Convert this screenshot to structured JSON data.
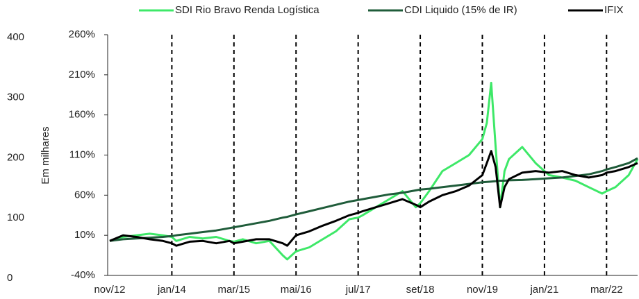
{
  "chart_data": {
    "type": "line",
    "y2_label": "Em milhares",
    "x": [
      "2012-11",
      "2013-02",
      "2013-05",
      "2013-08",
      "2013-11",
      "2014-01",
      "2014-02",
      "2014-05",
      "2014-08",
      "2014-11",
      "2015-02",
      "2015-03",
      "2015-05",
      "2015-08",
      "2015-11",
      "2016-02",
      "2016-03",
      "2016-05",
      "2016-08",
      "2016-11",
      "2017-02",
      "2017-05",
      "2017-07",
      "2017-08",
      "2017-11",
      "2018-02",
      "2018-05",
      "2018-08",
      "2018-09",
      "2018-11",
      "2019-02",
      "2019-05",
      "2019-08",
      "2019-11",
      "2019-12",
      "2020-01",
      "2020-02",
      "2020-03",
      "2020-04",
      "2020-05",
      "2020-08",
      "2020-11",
      "2021-02",
      "2021-05",
      "2021-08",
      "2021-11",
      "2022-02",
      "2022-03",
      "2022-05",
      "2022-08",
      "2022-10"
    ],
    "series": [
      {
        "name": "SDI Rio Bravo Renda Logística",
        "color": "#3ee868",
        "values": [
          3,
          8,
          10,
          12,
          10,
          8,
          3,
          8,
          6,
          8,
          3,
          2,
          5,
          0,
          3,
          -15,
          -20,
          -10,
          -5,
          5,
          15,
          30,
          32,
          35,
          45,
          55,
          65,
          45,
          50,
          65,
          90,
          100,
          110,
          130,
          150,
          200,
          120,
          45,
          90,
          105,
          120,
          100,
          85,
          82,
          78,
          70,
          62,
          65,
          70,
          85,
          105
        ]
      },
      {
        "name": "CDI Liquido (15% de IR)",
        "color": "#1f5c3a",
        "values": [
          3,
          5,
          6,
          7,
          8,
          9,
          10,
          12,
          14,
          16,
          19,
          20,
          22,
          25,
          28,
          32,
          33,
          36,
          40,
          44,
          48,
          52,
          54,
          55,
          58,
          61,
          63,
          66,
          67,
          68,
          70,
          72,
          74,
          76,
          76.5,
          77,
          77.5,
          78,
          78,
          78.5,
          79,
          80,
          81,
          82,
          84,
          86,
          90,
          92,
          95,
          100,
          106
        ]
      },
      {
        "name": "IFIX",
        "color": "#000000",
        "values": [
          3,
          10,
          8,
          5,
          3,
          0,
          -3,
          2,
          3,
          0,
          3,
          0,
          2,
          5,
          5,
          0,
          -3,
          10,
          15,
          22,
          28,
          35,
          38,
          40,
          45,
          50,
          55,
          48,
          45,
          52,
          60,
          65,
          72,
          85,
          100,
          115,
          95,
          45,
          70,
          80,
          88,
          90,
          88,
          90,
          85,
          82,
          85,
          88,
          90,
          95,
          100
        ]
      }
    ],
    "xlim": [
      "2012-11",
      "2022-10"
    ],
    "xticks": [
      {
        "value": "2012-11",
        "label": "nov/12"
      },
      {
        "value": "2014-01",
        "label": "jan/14"
      },
      {
        "value": "2015-03",
        "label": "mar/15"
      },
      {
        "value": "2016-05",
        "label": "mai/16"
      },
      {
        "value": "2017-07",
        "label": "jul/17"
      },
      {
        "value": "2018-09",
        "label": "set/18"
      },
      {
        "value": "2019-11",
        "label": "nov/19"
      },
      {
        "value": "2021-01",
        "label": "jan/21"
      },
      {
        "value": "2022-03",
        "label": "mar/22"
      }
    ],
    "x_grid": "dashed",
    "ylim": [
      -40,
      260
    ],
    "yticks": [
      {
        "value": -40,
        "label": "-40%"
      },
      {
        "value": 10,
        "label": "10%"
      },
      {
        "value": 60,
        "label": "60%"
      },
      {
        "value": 110,
        "label": "110%"
      },
      {
        "value": 160,
        "label": "160%"
      },
      {
        "value": 210,
        "label": "210%"
      },
      {
        "value": 260,
        "label": "260%"
      }
    ],
    "y2lim": [
      0,
      400
    ],
    "y2ticks": [
      0,
      100,
      200,
      300,
      400
    ],
    "legend": "top"
  }
}
